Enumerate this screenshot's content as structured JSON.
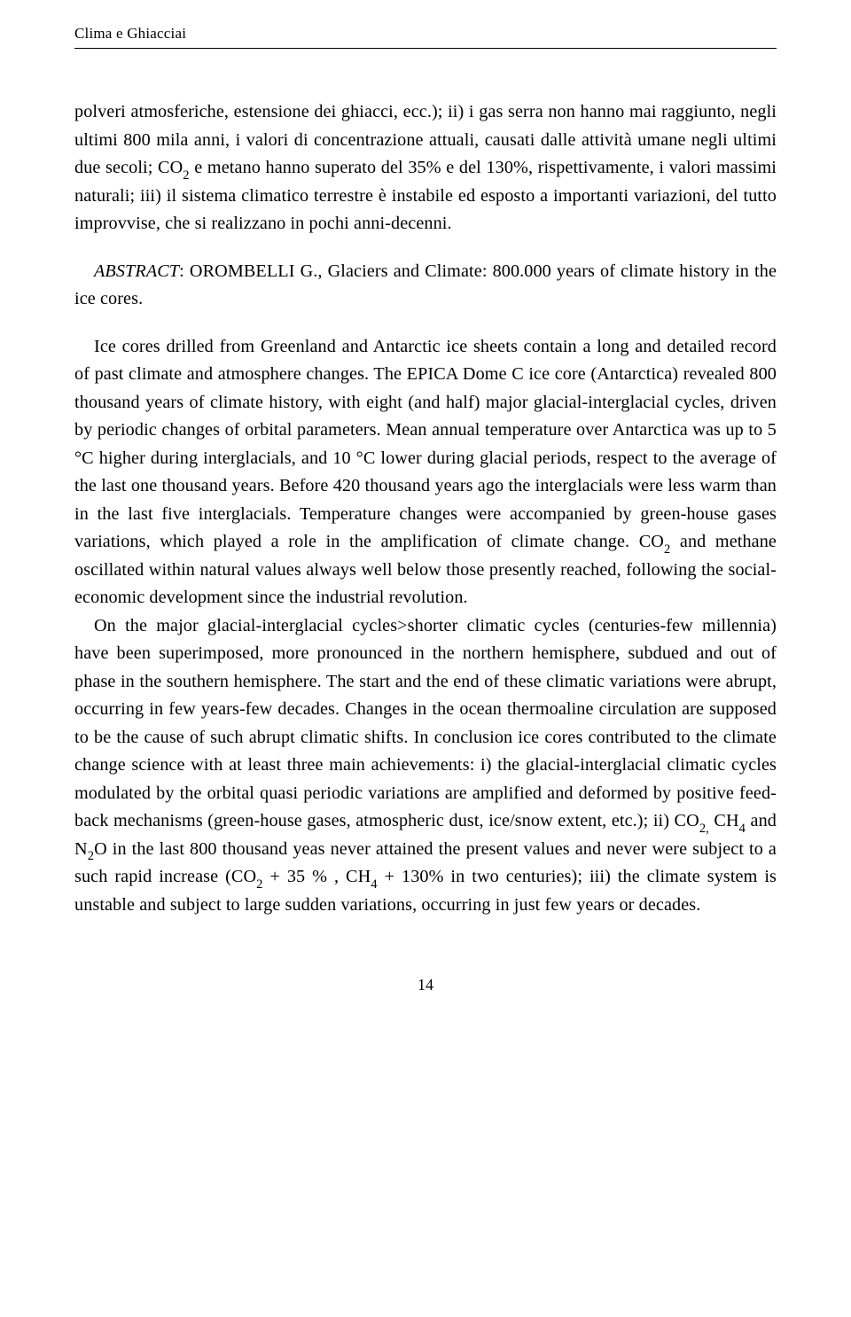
{
  "header": {
    "running_head": "Clima e Ghiacciai"
  },
  "body": {
    "p1_a": "polveri atmosferiche, estensione dei ghiacci, ecc.); ii) i gas serra non hanno mai raggiunto, negli ultimi 800 mila anni, i valori di concentrazione attuali, causati dalle attività umane negli ultimi due secoli; CO",
    "p1_sub1": "2",
    "p1_b": " e metano hanno superato del 35% e del 130%, rispettivamente, i valori massimi naturali; iii) il sistema climatico terrestre è instabile ed esposto a importanti variazioni, del tutto improvvise, che si realizzano in pochi anni-decenni.",
    "p2_label": "ABSTRACT",
    "p2_rest": ": OROMBELLI G., Glaciers and Climate: 800.000 years of climate history in the ice cores.",
    "p3_a": "Ice cores drilled from Greenland and Antarctic ice sheets contain a long and detailed record of past climate and atmosphere changes.  The EPICA Dome C ice core (Antarctica) revealed 800 thousand years of climate history, with eight (and half) major glacial-interglacial cycles, driven by periodic changes of orbital parameters. Mean annual temperature over Antarctica was up to 5 °C higher during interglacials, and 10 °C lower during glacial periods, respect to the average of the last one thousand years. Before 420 thousand years ago the interglacials were less warm than in the last five interglacials. Temperature changes were accompanied by  green-house gases variations, which played a role in the amplification of climate change. CO",
    "p3_sub1": "2",
    "p3_b": " and methane oscillated within natural values always well below those presently reached, following the social-economic development since the industrial revolution.",
    "p4_a": "On the major glacial-interglacial cycles>shorter climatic cycles (centuries-few millennia) have been superimposed, more pronounced in the northern hemisphere, subdued and out of phase in the southern hemisphere. The start and the end of these climatic variations were abrupt, occurring in few years-few decades. Changes in the ocean thermoaline circulation are supposed to be the cause of such abrupt climatic shifts. In conclusion ice cores contributed to the climate change science with at least three main achievements: i) the glacial-interglacial climatic cycles modulated by the orbital quasi periodic variations are amplified and deformed by positive feed-back mechanisms (green-house gases, atmospheric dust, ice/snow extent, etc.); ii) CO",
    "p4_sub1": "2,",
    "p4_b": " CH",
    "p4_sub2": "4",
    "p4_c": " and N",
    "p4_sub3": "2",
    "p4_d": "O in the last 800 thousand yeas never attained the present values and never were subject to a such rapid increase (CO",
    "p4_sub4": "2",
    "p4_e": " + 35 % , CH",
    "p4_sub5": "4",
    "p4_f": "  + 130% in two centuries); iii) the climate system is unstable and subject to large  sudden variations, occurring in just few years or decades."
  },
  "footer": {
    "page_number": "14"
  }
}
